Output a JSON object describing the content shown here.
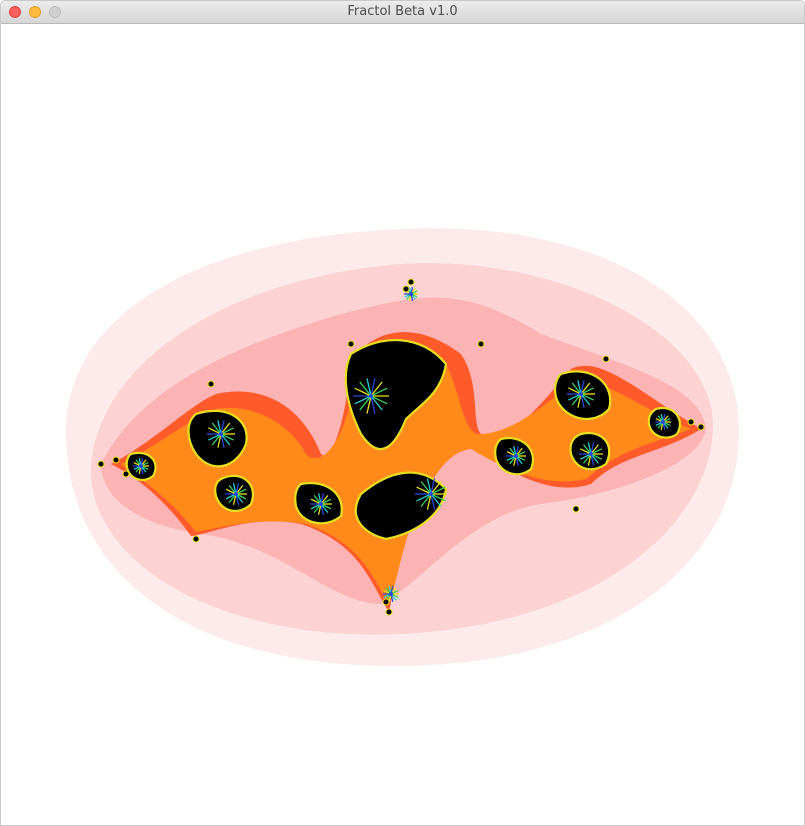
{
  "window": {
    "title": "Fractol Beta v1.0",
    "buttons": {
      "close": {
        "icon": "close-dot",
        "color": "#fc605c"
      },
      "minimize": {
        "icon": "minimize-dot",
        "color": "#fdbc40"
      },
      "maximize": {
        "icon": "zoom-dot",
        "color": "#d0d0d0"
      }
    }
  },
  "fractal": {
    "kind": "julia-set-render",
    "palette": {
      "outer_halo": "#fdeaea",
      "halo_2": "#fcd2d2",
      "halo_3": "#fbb3b3",
      "glow": "#ff5a2a",
      "band_orange": "#ff8a1a",
      "band_yellow": "#e6e020",
      "band_green": "#3cd35a",
      "band_cyan": "#22cfd4",
      "band_blue": "#2448d8",
      "interior": "#000000"
    }
  }
}
